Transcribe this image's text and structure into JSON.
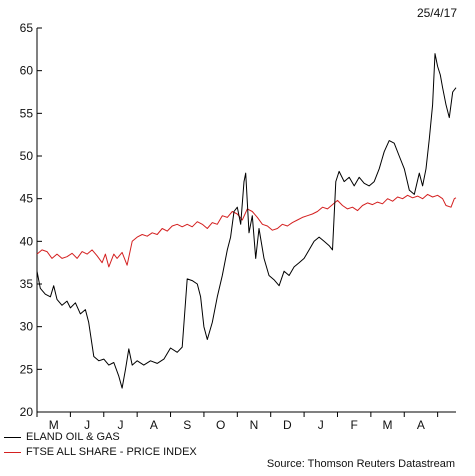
{
  "chart_data": {
    "type": "line",
    "date": "25/4/17",
    "source": "Source: Thomson Reuters Datastream",
    "ylim": [
      20,
      65
    ],
    "yticks": [
      20,
      25,
      30,
      35,
      40,
      45,
      50,
      55,
      60,
      65
    ],
    "xtick_labels": [
      "M",
      "J",
      "J",
      "A",
      "S",
      "O",
      "N",
      "D",
      "J",
      "F",
      "M",
      "A"
    ],
    "grid": false,
    "legend_position": "bottom-left",
    "series": [
      {
        "name": "ELAND OIL & GAS",
        "color": "#000000",
        "points": [
          [
            0,
            36.5
          ],
          [
            0.1,
            34.5
          ],
          [
            0.25,
            33.8
          ],
          [
            0.4,
            33.5
          ],
          [
            0.5,
            34.8
          ],
          [
            0.6,
            33.2
          ],
          [
            0.75,
            32.5
          ],
          [
            0.9,
            33.0
          ],
          [
            1.0,
            32.2
          ],
          [
            1.15,
            32.8
          ],
          [
            1.3,
            31.5
          ],
          [
            1.45,
            32.0
          ],
          [
            1.55,
            30.5
          ],
          [
            1.7,
            26.5
          ],
          [
            1.85,
            26.0
          ],
          [
            2.0,
            26.2
          ],
          [
            2.15,
            25.5
          ],
          [
            2.3,
            25.8
          ],
          [
            2.45,
            24.2
          ],
          [
            2.55,
            22.8
          ],
          [
            2.65,
            25.0
          ],
          [
            2.75,
            27.4
          ],
          [
            2.85,
            25.5
          ],
          [
            3.0,
            26.0
          ],
          [
            3.2,
            25.5
          ],
          [
            3.4,
            26.0
          ],
          [
            3.6,
            25.7
          ],
          [
            3.8,
            26.2
          ],
          [
            4.0,
            27.5
          ],
          [
            4.2,
            27.0
          ],
          [
            4.35,
            27.6
          ],
          [
            4.5,
            35.6
          ],
          [
            4.65,
            35.4
          ],
          [
            4.8,
            35.0
          ],
          [
            4.9,
            33.5
          ],
          [
            5.0,
            30.0
          ],
          [
            5.1,
            28.5
          ],
          [
            5.25,
            30.5
          ],
          [
            5.4,
            33.5
          ],
          [
            5.55,
            36.0
          ],
          [
            5.7,
            39.0
          ],
          [
            5.8,
            40.5
          ],
          [
            5.9,
            43.5
          ],
          [
            6.0,
            44.0
          ],
          [
            6.1,
            42.0
          ],
          [
            6.2,
            47.0
          ],
          [
            6.25,
            48.0
          ],
          [
            6.35,
            41.0
          ],
          [
            6.45,
            43.0
          ],
          [
            6.55,
            38.0
          ],
          [
            6.65,
            41.5
          ],
          [
            6.8,
            38.0
          ],
          [
            6.95,
            36.0
          ],
          [
            7.1,
            35.5
          ],
          [
            7.25,
            34.8
          ],
          [
            7.4,
            36.5
          ],
          [
            7.55,
            36.0
          ],
          [
            7.7,
            37.0
          ],
          [
            7.85,
            37.5
          ],
          [
            8.0,
            38.0
          ],
          [
            8.15,
            39.0
          ],
          [
            8.3,
            40.0
          ],
          [
            8.45,
            40.5
          ],
          [
            8.6,
            40.0
          ],
          [
            8.75,
            39.5
          ],
          [
            8.85,
            39.0
          ],
          [
            8.95,
            47.0
          ],
          [
            9.05,
            48.2
          ],
          [
            9.2,
            47.0
          ],
          [
            9.35,
            47.5
          ],
          [
            9.5,
            46.5
          ],
          [
            9.65,
            47.5
          ],
          [
            9.8,
            46.8
          ],
          [
            9.95,
            46.5
          ],
          [
            10.1,
            47.0
          ],
          [
            10.25,
            48.5
          ],
          [
            10.4,
            50.5
          ],
          [
            10.55,
            51.8
          ],
          [
            10.7,
            51.5
          ],
          [
            10.85,
            50.0
          ],
          [
            11.0,
            48.5
          ],
          [
            11.15,
            46.0
          ],
          [
            11.3,
            45.5
          ],
          [
            11.45,
            48.0
          ],
          [
            11.55,
            46.5
          ],
          [
            11.65,
            48.5
          ],
          [
            11.75,
            52.0
          ],
          [
            11.85,
            56.0
          ],
          [
            11.92,
            62.0
          ],
          [
            12.0,
            60.5
          ],
          [
            12.08,
            59.5
          ],
          [
            12.15,
            58.0
          ],
          [
            12.25,
            56.0
          ],
          [
            12.35,
            54.5
          ],
          [
            12.45,
            57.5
          ],
          [
            12.55,
            58.0
          ]
        ]
      },
      {
        "name": "FTSE ALL SHARE - PRICE INDEX",
        "color": "#d42020",
        "points": [
          [
            0,
            38.5
          ],
          [
            0.15,
            39.0
          ],
          [
            0.3,
            38.8
          ],
          [
            0.45,
            38.0
          ],
          [
            0.6,
            38.5
          ],
          [
            0.75,
            38.0
          ],
          [
            0.9,
            38.2
          ],
          [
            1.05,
            38.6
          ],
          [
            1.2,
            38.0
          ],
          [
            1.35,
            38.8
          ],
          [
            1.5,
            38.5
          ],
          [
            1.65,
            39.0
          ],
          [
            1.8,
            38.3
          ],
          [
            1.95,
            37.5
          ],
          [
            2.05,
            38.5
          ],
          [
            2.15,
            37.0
          ],
          [
            2.3,
            38.5
          ],
          [
            2.4,
            38.0
          ],
          [
            2.55,
            38.7
          ],
          [
            2.7,
            37.2
          ],
          [
            2.85,
            40.0
          ],
          [
            3.0,
            40.5
          ],
          [
            3.15,
            40.8
          ],
          [
            3.3,
            40.6
          ],
          [
            3.45,
            41.0
          ],
          [
            3.6,
            40.8
          ],
          [
            3.75,
            41.5
          ],
          [
            3.9,
            41.2
          ],
          [
            4.05,
            41.8
          ],
          [
            4.2,
            42.0
          ],
          [
            4.35,
            41.7
          ],
          [
            4.5,
            42.0
          ],
          [
            4.65,
            41.7
          ],
          [
            4.8,
            42.3
          ],
          [
            4.95,
            42.0
          ],
          [
            5.1,
            41.5
          ],
          [
            5.25,
            42.2
          ],
          [
            5.4,
            42.0
          ],
          [
            5.55,
            43.0
          ],
          [
            5.7,
            42.8
          ],
          [
            5.85,
            43.5
          ],
          [
            6.0,
            43.2
          ],
          [
            6.15,
            42.5
          ],
          [
            6.3,
            43.8
          ],
          [
            6.45,
            43.5
          ],
          [
            6.6,
            42.8
          ],
          [
            6.75,
            42.0
          ],
          [
            6.9,
            41.8
          ],
          [
            7.05,
            41.3
          ],
          [
            7.2,
            41.5
          ],
          [
            7.35,
            42.0
          ],
          [
            7.5,
            41.8
          ],
          [
            7.65,
            42.2
          ],
          [
            7.8,
            42.5
          ],
          [
            7.95,
            42.8
          ],
          [
            8.1,
            43.0
          ],
          [
            8.25,
            43.2
          ],
          [
            8.4,
            43.5
          ],
          [
            8.55,
            44.0
          ],
          [
            8.7,
            43.8
          ],
          [
            8.85,
            44.3
          ],
          [
            9.0,
            44.8
          ],
          [
            9.15,
            44.2
          ],
          [
            9.3,
            43.8
          ],
          [
            9.45,
            44.0
          ],
          [
            9.6,
            43.6
          ],
          [
            9.75,
            44.2
          ],
          [
            9.9,
            44.5
          ],
          [
            10.05,
            44.3
          ],
          [
            10.2,
            44.6
          ],
          [
            10.35,
            44.4
          ],
          [
            10.5,
            45.0
          ],
          [
            10.65,
            44.7
          ],
          [
            10.8,
            45.2
          ],
          [
            10.95,
            45.0
          ],
          [
            11.1,
            45.4
          ],
          [
            11.25,
            45.1
          ],
          [
            11.4,
            45.3
          ],
          [
            11.55,
            45.0
          ],
          [
            11.7,
            45.5
          ],
          [
            11.85,
            45.2
          ],
          [
            12.0,
            45.4
          ],
          [
            12.15,
            45.0
          ],
          [
            12.25,
            44.2
          ],
          [
            12.4,
            44.0
          ],
          [
            12.5,
            45.0
          ],
          [
            12.55,
            45.1
          ]
        ]
      }
    ]
  }
}
